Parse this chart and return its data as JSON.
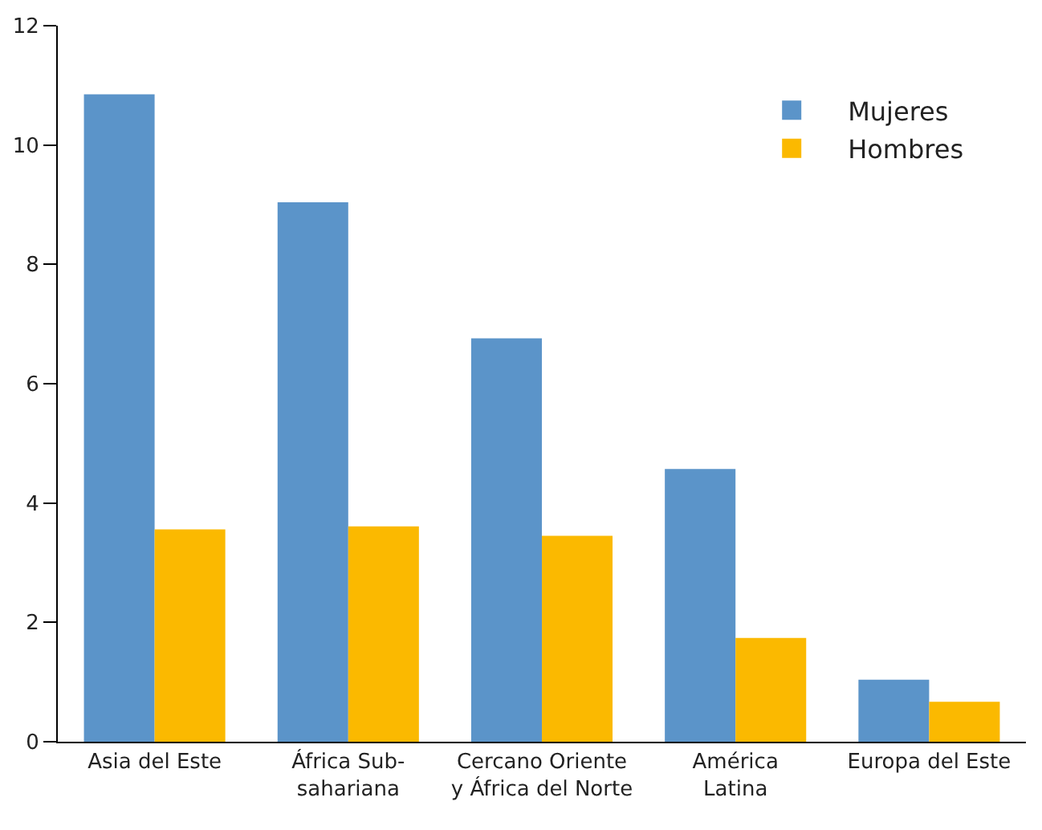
{
  "chart_data": {
    "type": "bar",
    "categories": [
      "Asia del Este",
      "África Sub-\nsahariana",
      "Cercano Oriente\ny África del Norte",
      "América\nLatina",
      "Europa del Este"
    ],
    "series": [
      {
        "name": "Mujeres",
        "color": "#5b94c9",
        "values": [
          10.85,
          9.04,
          6.76,
          4.57,
          1.04
        ]
      },
      {
        "name": "Hombres",
        "color": "#fbb900",
        "values": [
          3.56,
          3.61,
          3.45,
          1.74,
          0.67
        ]
      }
    ],
    "ylim": [
      0,
      12
    ],
    "yticks": [
      0,
      2,
      4,
      6,
      8,
      10,
      12
    ],
    "grid": false,
    "legend": "top right"
  }
}
